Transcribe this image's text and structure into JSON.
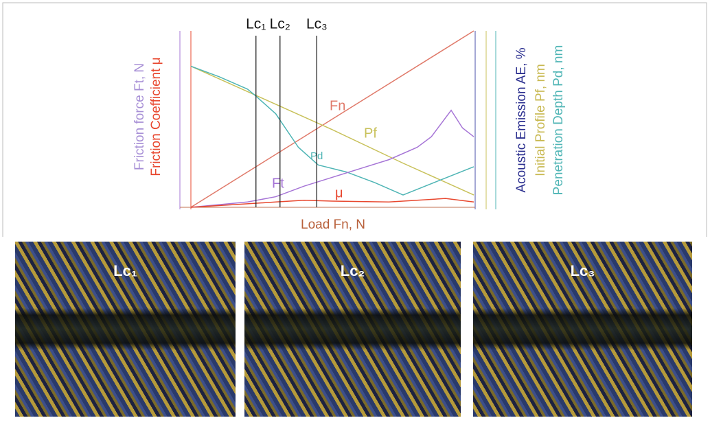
{
  "chart_data": {
    "type": "line",
    "xlabel": "Load Fn, N",
    "ylabels_left": [
      "Friction force Ft, N",
      "Friction Coefficient μ"
    ],
    "ylabels_right": [
      "Acoustic Emission AE, %",
      "Initial Profile Pf, nm",
      "Penetration Depth Pd, nm"
    ],
    "xlim": [
      0,
      100
    ],
    "ylim": [
      0,
      100
    ],
    "critical_loads": [
      {
        "label": "Lc₁",
        "x": 23
      },
      {
        "label": "Lc₂",
        "x": 31.5
      },
      {
        "label": "Lc₃",
        "x": 44.5
      }
    ],
    "series": [
      {
        "name": "Fn",
        "color": "#e07a6a",
        "x": [
          0,
          100
        ],
        "values": [
          0,
          100
        ]
      },
      {
        "name": "Pf",
        "color": "#c8c15a",
        "x": [
          0,
          25,
          50,
          75,
          100
        ],
        "values": [
          80,
          62,
          44,
          25,
          7
        ]
      },
      {
        "name": "Pd",
        "color": "#4fb5b5",
        "x": [
          0,
          10,
          20,
          23,
          30,
          38,
          45,
          55,
          65,
          75,
          100
        ],
        "values": [
          80,
          74,
          67,
          63,
          53,
          34,
          24,
          20,
          14,
          7,
          23
        ]
      },
      {
        "name": "Ft",
        "color": "#a675d6",
        "x": [
          0,
          20,
          30,
          40,
          50,
          60,
          70,
          80,
          85,
          92,
          96,
          100
        ],
        "values": [
          0,
          3,
          6,
          12,
          17,
          22,
          27,
          34,
          40,
          55,
          45,
          40
        ]
      },
      {
        "name": "μ",
        "color": "#e8472e",
        "x": [
          0,
          20,
          30,
          40,
          50,
          70,
          90,
          100
        ],
        "values": [
          0,
          2,
          3,
          4,
          3.5,
          3,
          5,
          3
        ]
      }
    ]
  },
  "images": [
    {
      "label": "Lc₁"
    },
    {
      "label": "Lc₂"
    },
    {
      "label": "Lc₃"
    }
  ]
}
